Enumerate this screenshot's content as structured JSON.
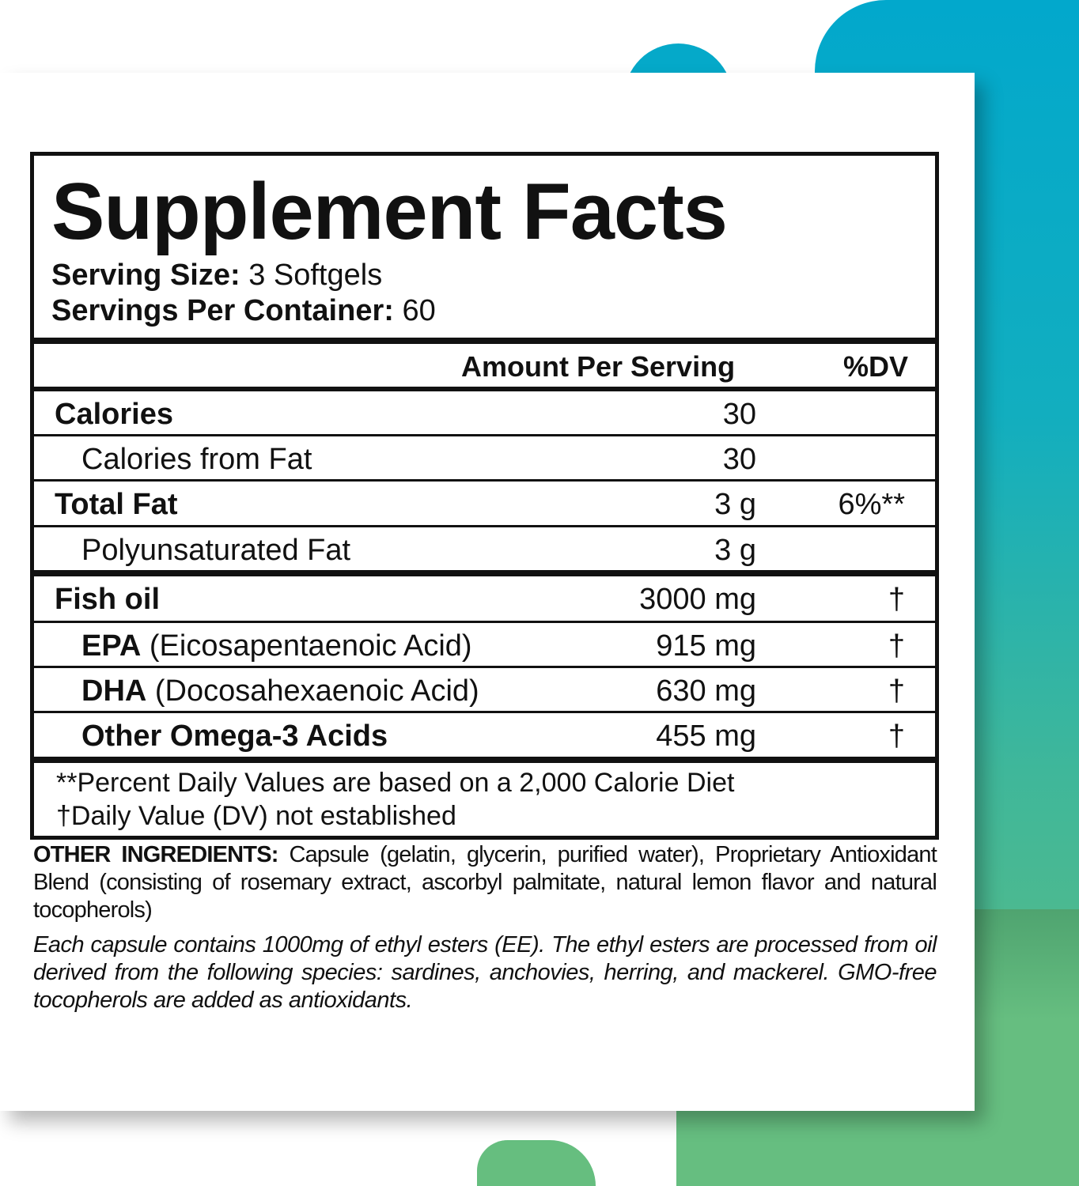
{
  "colors": {
    "teal": "#02a8cc",
    "green": "#63bd7e",
    "ink": "#111111"
  },
  "title": "Supplement Facts",
  "serving_size": {
    "label": "Serving Size:",
    "value": "3 Softgels"
  },
  "servings_per_container": {
    "label": "Servings Per Container:",
    "value": "60"
  },
  "columns": {
    "amount": "Amount Per Serving",
    "dv": "%DV"
  },
  "rows": [
    {
      "name": "Calories",
      "amount": "30",
      "dv": ""
    },
    {
      "name": "Calories from Fat",
      "amount": "30",
      "dv": ""
    },
    {
      "name": "Total Fat",
      "amount": "3 g",
      "dv": "6%**"
    },
    {
      "name": "Polyunsaturated Fat",
      "amount": "3 g",
      "dv": ""
    },
    {
      "name": "Fish oil",
      "amount": "3000 mg",
      "dv": "†"
    },
    {
      "name": "EPA",
      "detail": "(Eicosapentaenoic Acid)",
      "amount": "915 mg",
      "dv": "†"
    },
    {
      "name": "DHA",
      "detail": "(Docosahexaenoic Acid)",
      "amount": "630 mg",
      "dv": "†"
    },
    {
      "name": "Other Omega-3 Acids",
      "amount": "455 mg",
      "dv": "†"
    }
  ],
  "footnotes": [
    "**Percent Daily Values are based on a 2,000 Calorie Diet",
    "†Daily Value (DV) not established"
  ],
  "other_ingredients": {
    "label": "OTHER INGREDIENTS:",
    "text": " Capsule (gelatin, glycerin, purified water), Proprietary Antioxidant Blend (consisting of rosemary extract, ascorbyl palmitate, natural lemon flavor and natural tocopherols)"
  },
  "note": "Each capsule contains 1000mg of ethyl esters (EE). The ethyl esters are processed from oil derived from the following species: sardines, anchovies, herring, and mackerel. GMO-free tocopherols are added as antioxidants."
}
